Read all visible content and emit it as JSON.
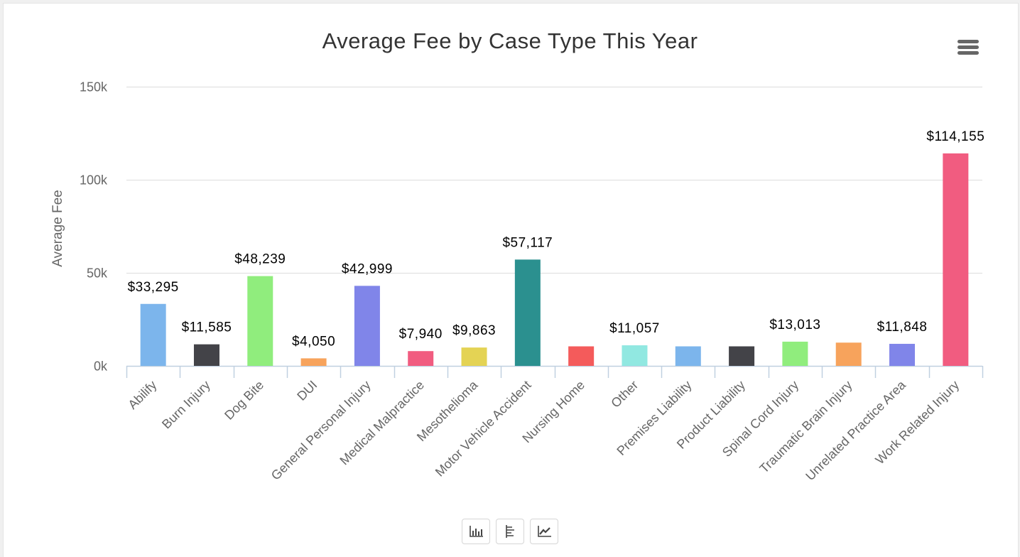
{
  "menu": {
    "icon": "hamburger-menu-icon"
  },
  "toolbar": {
    "buttons": [
      {
        "icon": "bar-chart-icon"
      },
      {
        "icon": "table-view-icon"
      },
      {
        "icon": "line-chart-icon"
      }
    ]
  },
  "chart_data": {
    "type": "bar",
    "title": "Average Fee by Case Type This Year",
    "xlabel": "",
    "ylabel": "Average Fee",
    "ylim": [
      0,
      150000
    ],
    "yticks": [
      0,
      50000,
      100000,
      150000
    ],
    "ytick_labels": [
      "0k",
      "50k",
      "100k",
      "150k"
    ],
    "grid": true,
    "legend": "none",
    "categories": [
      "Abilify",
      "Burn Injury",
      "Dog Bite",
      "DUI",
      "General Personal Injury",
      "Medical Malpractice",
      "Mesothelioma",
      "Motor Vehicle Accident",
      "Nursing Home",
      "Other",
      "Premises Liability",
      "Product Liability",
      "Spinal Cord Injury",
      "Traumatic Brain Injury",
      "Unrelated Practice Area",
      "Work Related Injury"
    ],
    "values": [
      33295,
      11585,
      48239,
      4050,
      42999,
      7940,
      9863,
      57117,
      10500,
      11057,
      10500,
      10500,
      13013,
      12500,
      11848,
      114155
    ],
    "data_labels": [
      "$33,295",
      "$11,585",
      "$48,239",
      "$4,050",
      "$42,999",
      "$7,940",
      "$9,863",
      "$57,117",
      "",
      "$11,057",
      "",
      "",
      "$13,013",
      "",
      "$11,848",
      "$114,155"
    ],
    "colors": [
      "#7cb5ec",
      "#434348",
      "#90ed7d",
      "#f7a35c",
      "#8085e9",
      "#f15c80",
      "#e4d354",
      "#2b908f",
      "#f45b5b",
      "#91e8e1",
      "#7cb5ec",
      "#434348",
      "#90ed7d",
      "#f7a35c",
      "#8085e9",
      "#f15c80"
    ]
  }
}
